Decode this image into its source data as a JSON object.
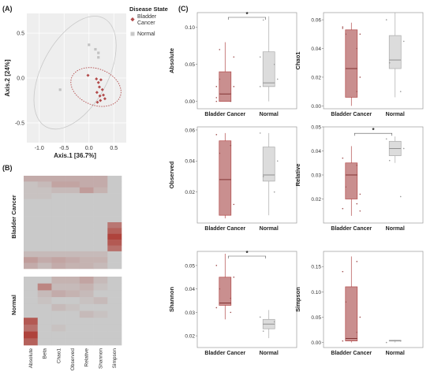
{
  "panels": {
    "a": "(A)",
    "b": "(B)",
    "c": "(C)"
  },
  "colors": {
    "bladder": "#b24a4a",
    "bladder_fill": "#c98f8f",
    "normal_fill": "#dcdcdc",
    "normal_line": "#aaaaaa",
    "heat_base": "#c9c9c9"
  },
  "chart_data": [
    {
      "type": "scatter",
      "xlabel": "Axis.1  [36.7%]",
      "ylabel": "Axis.2  [24%]",
      "xlim": [
        -1.25,
        0.75
      ],
      "ylim": [
        -0.72,
        0.72
      ],
      "xticks": [
        "-1.0",
        "-0.5",
        "0.0",
        "0.5"
      ],
      "xtick_values": [
        -1.0,
        -0.5,
        0.0,
        0.5
      ],
      "yticks": [
        "0.5",
        "0.0",
        "-0.5"
      ],
      "ytick_values": [
        0.5,
        0.0,
        -0.5
      ],
      "grid": true,
      "legend": {
        "title": "Disease State",
        "position": "right",
        "entries": [
          "Bladder Cancer",
          "Normal"
        ]
      },
      "series": [
        {
          "name": "Bladder Cancer",
          "points": [
            [
              -0.02,
              0.03
            ],
            [
              0.15,
              -0.01
            ],
            [
              0.19,
              -0.05
            ],
            [
              0.24,
              -0.02
            ],
            [
              0.21,
              -0.1
            ],
            [
              0.27,
              -0.13
            ],
            [
              0.16,
              -0.16
            ],
            [
              0.22,
              -0.2
            ],
            [
              0.29,
              -0.19
            ],
            [
              0.23,
              -0.25
            ],
            [
              0.17,
              -0.27
            ],
            [
              0.32,
              -0.23
            ]
          ]
        },
        {
          "name": "Normal",
          "points": [
            [
              -0.58,
              -0.13
            ],
            [
              0.13,
              0.32
            ],
            [
              0.19,
              0.28
            ],
            [
              0.19,
              0.23
            ],
            [
              0.0,
              0.37
            ]
          ]
        }
      ]
    },
    {
      "type": "heatmap",
      "columns": [
        "Absolute",
        "Beta",
        "Chao1",
        "Observed",
        "Relative",
        "Shannon",
        "Simpson"
      ],
      "groups": [
        {
          "name": "Bladder Cancer",
          "rows": [
            [
              0.2,
              0.2,
              0.2,
              0.2,
              0.2,
              0.2,
              0.0
            ],
            [
              0.05,
              0.1,
              0.25,
              0.25,
              0.2,
              0.2,
              0.0
            ],
            [
              0.05,
              0.05,
              0.1,
              0.1,
              0.3,
              0.15,
              0.0
            ],
            [
              0.05,
              0.05,
              0.0,
              0.0,
              0.0,
              0.0,
              0.0
            ],
            [
              0.0,
              0.0,
              0.0,
              0.0,
              0.0,
              0.0,
              0.0
            ],
            [
              0.0,
              0.0,
              0.0,
              0.0,
              0.0,
              0.0,
              0.0
            ],
            [
              0.0,
              0.0,
              0.0,
              0.0,
              0.0,
              0.0,
              0.0
            ],
            [
              0.0,
              0.0,
              0.0,
              0.0,
              0.0,
              0.0,
              0.0
            ],
            [
              0.0,
              0.0,
              0.0,
              0.0,
              0.0,
              0.0,
              0.55
            ],
            [
              0.0,
              0.0,
              0.0,
              0.0,
              0.0,
              0.0,
              0.7
            ],
            [
              0.0,
              0.0,
              0.0,
              0.0,
              0.0,
              0.0,
              0.9
            ],
            [
              0.0,
              0.0,
              0.0,
              0.0,
              0.0,
              0.0,
              0.75
            ],
            [
              0.0,
              0.0,
              0.0,
              0.0,
              0.0,
              0.0,
              0.6
            ],
            [
              0.1,
              0.1,
              0.1,
              0.1,
              0.1,
              0.1,
              0.0
            ],
            [
              0.3,
              0.2,
              0.25,
              0.2,
              0.15,
              0.15,
              0.0
            ],
            [
              0.2,
              0.1,
              0.2,
              0.15,
              0.15,
              0.1,
              0.0
            ]
          ]
        },
        {
          "name": "Normal",
          "rows": [
            [
              0.0,
              0.0,
              0.15,
              0.15,
              0.25,
              0.1,
              0.0
            ],
            [
              0.0,
              0.45,
              0.1,
              0.1,
              0.15,
              0.05,
              0.0
            ],
            [
              0.0,
              0.1,
              0.2,
              0.15,
              0.1,
              0.0,
              0.0
            ],
            [
              0.0,
              0.05,
              0.0,
              0.0,
              0.05,
              0.1,
              0.0
            ],
            [
              0.0,
              0.0,
              0.1,
              0.05,
              0.0,
              0.0,
              0.0
            ],
            [
              0.0,
              0.0,
              0.0,
              0.0,
              0.1,
              0.05,
              0.0
            ],
            [
              0.75,
              0.0,
              0.0,
              0.0,
              0.0,
              0.0,
              0.0
            ],
            [
              0.6,
              0.0,
              0.05,
              0.0,
              0.0,
              0.0,
              0.0
            ],
            [
              0.9,
              0.0,
              0.0,
              0.0,
              0.0,
              0.0,
              0.0
            ],
            [
              0.7,
              0.0,
              0.0,
              0.0,
              0.0,
              0.0,
              0.0
            ]
          ]
        }
      ]
    },
    {
      "type": "box",
      "title": "Absolute",
      "ylim": [
        -0.01,
        0.12
      ],
      "yticks": [
        "0.00",
        "0.05",
        "0.10"
      ],
      "ytick_values": [
        0,
        0.05,
        0.1
      ],
      "categories": [
        "Bladder Cancer",
        "Normal"
      ],
      "boxes": [
        {
          "q1": 0.0,
          "median": 0.01,
          "q3": 0.04,
          "whisker_low": 0.0,
          "whisker_high": 0.08
        },
        {
          "q1": 0.02,
          "median": 0.025,
          "q3": 0.067,
          "whisker_low": 0.0,
          "whisker_high": 0.115
        }
      ],
      "significance": "*",
      "points": [
        [
          [
            0.02,
            0.07
          ],
          [
            0.01,
            0.06
          ],
          [
            0.005,
            0.03
          ],
          [
            0.0,
            0.02
          ],
          [
            0.0,
            0.01
          ]
        ],
        [
          [
            0.06,
            0.11
          ],
          [
            0.05,
            0.03
          ],
          [
            0.02
          ]
        ]
      ]
    },
    {
      "type": "box",
      "title": "Chao1",
      "ylim": [
        -0.002,
        0.065
      ],
      "yticks": [
        "0.00",
        "0.02",
        "0.04",
        "0.06"
      ],
      "ytick_values": [
        0,
        0.02,
        0.04,
        0.06
      ],
      "categories": [
        "Bladder Cancer",
        "Normal"
      ],
      "boxes": [
        {
          "q1": 0.006,
          "median": 0.026,
          "q3": 0.053,
          "whisker_low": 0.0,
          "whisker_high": 0.058
        },
        {
          "q1": 0.026,
          "median": 0.032,
          "q3": 0.049,
          "whisker_low": 0.006,
          "whisker_high": 0.065
        }
      ],
      "significance": "",
      "points": [
        [
          [
            0.055,
            0.05,
            0.04,
            0.02
          ],
          [
            0.01,
            0.05,
            0.054
          ]
        ],
        [
          [
            0.06,
            0.03
          ],
          [
            0.01,
            0.045
          ]
        ]
      ]
    },
    {
      "type": "box",
      "title": "Observed",
      "ylim": [
        0.0,
        0.062
      ],
      "yticks": [
        "0.02",
        "0.04",
        "0.06"
      ],
      "ytick_values": [
        0.02,
        0.04,
        0.06
      ],
      "categories": [
        "Bladder Cancer",
        "Normal"
      ],
      "boxes": [
        {
          "q1": 0.005,
          "median": 0.028,
          "q3": 0.053,
          "whisker_low": 0.003,
          "whisker_high": 0.058
        },
        {
          "q1": 0.027,
          "median": 0.031,
          "q3": 0.049,
          "whisker_low": 0.005,
          "whisker_high": 0.058
        }
      ],
      "significance": "",
      "points": [
        [
          [
            0.057,
            0.045
          ],
          [
            0.05,
            0.012
          ]
        ],
        [
          [
            0.058,
            0.03
          ],
          [
            0.02,
            0.04
          ]
        ]
      ]
    },
    {
      "type": "box",
      "title": "Relative",
      "ylim": [
        0.01,
        0.05
      ],
      "yticks": [
        "0.02",
        "0.03",
        "0.04",
        "0.05"
      ],
      "ytick_values": [
        0.02,
        0.03,
        0.04,
        0.05
      ],
      "categories": [
        "Bladder Cancer",
        "Normal"
      ],
      "boxes": [
        {
          "q1": 0.02,
          "median": 0.03,
          "q3": 0.035,
          "whisker_low": 0.013,
          "whisker_high": 0.042
        },
        {
          "q1": 0.038,
          "median": 0.041,
          "q3": 0.044,
          "whisker_low": 0.035,
          "whisker_high": 0.046
        }
      ],
      "significance": "*",
      "points": [
        [
          [
            0.037,
            0.025,
            0.018,
            0.015
          ],
          [
            0.034,
            0.022,
            0.016
          ]
        ],
        [
          [
            0.045,
            0.036
          ],
          [
            0.021,
            0.041
          ]
        ]
      ]
    },
    {
      "type": "box",
      "title": "Shannon",
      "ylim": [
        0.015,
        0.056
      ],
      "yticks": [
        "0.02",
        "0.03",
        "0.04",
        "0.05"
      ],
      "ytick_values": [
        0.02,
        0.03,
        0.04,
        0.05
      ],
      "categories": [
        "Bladder Cancer",
        "Normal"
      ],
      "boxes": [
        {
          "q1": 0.033,
          "median": 0.034,
          "q3": 0.045,
          "whisker_low": 0.027,
          "whisker_high": 0.055
        },
        {
          "q1": 0.023,
          "median": 0.025,
          "q3": 0.027,
          "whisker_low": 0.019,
          "whisker_high": 0.031
        }
      ],
      "significance": "*",
      "points": [
        [
          [
            0.05,
            0.04,
            0.03
          ],
          [
            0.036,
            0.045,
            0.032
          ]
        ],
        [
          [
            0.028,
            0.022
          ],
          [
            0.026
          ]
        ]
      ]
    },
    {
      "type": "box",
      "title": "Simpson",
      "ylim": [
        -0.01,
        0.18
      ],
      "yticks": [
        "0.00",
        "0.05",
        "0.10",
        "0.15"
      ],
      "ytick_values": [
        0,
        0.05,
        0.1,
        0.15
      ],
      "categories": [
        "Bladder Cancer",
        "Normal"
      ],
      "boxes": [
        {
          "q1": 0.003,
          "median": 0.008,
          "q3": 0.11,
          "whisker_low": 0.0,
          "whisker_high": 0.17
        },
        {
          "q1": 0.003,
          "median": 0.004,
          "q3": 0.004,
          "whisker_low": 0.0,
          "whisker_high": 0.005
        }
      ],
      "significance": "",
      "points": [
        [
          [
            0.14,
            0.08,
            0.02
          ],
          [
            0.16,
            0.05,
            0.003
          ]
        ],
        [
          [
            0.0
          ],
          [
            0.003
          ]
        ]
      ]
    }
  ]
}
